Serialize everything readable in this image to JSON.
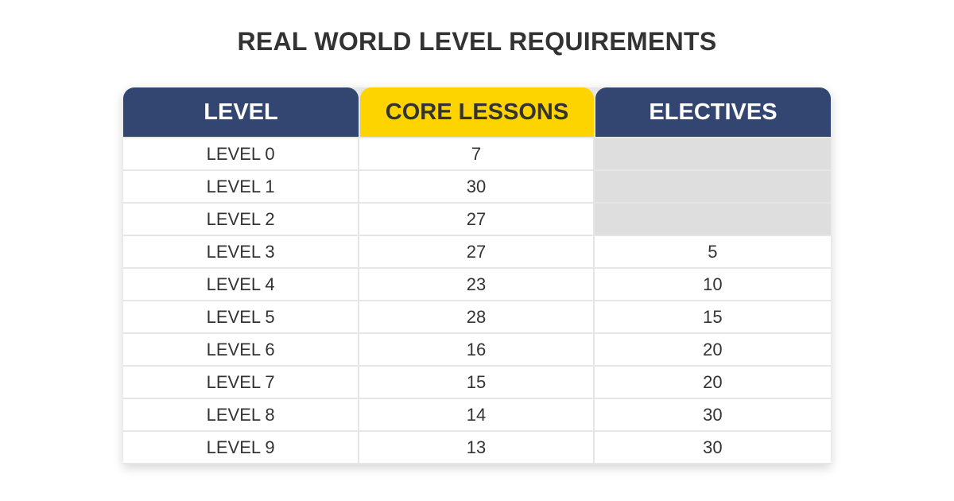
{
  "title": "REAL WORLD LEVEL REQUIREMENTS",
  "colors": {
    "header_navy": "#334571",
    "header_yellow": "#fdd400",
    "empty_cell_gray": "#dedede",
    "text": "#333333"
  },
  "table": {
    "headers": [
      "LEVEL",
      "CORE LESSONS",
      "ELECTIVES"
    ],
    "rows": [
      {
        "level": "LEVEL 0",
        "core": "7",
        "electives": ""
      },
      {
        "level": "LEVEL 1",
        "core": "30",
        "electives": ""
      },
      {
        "level": "LEVEL 2",
        "core": "27",
        "electives": ""
      },
      {
        "level": "LEVEL 3",
        "core": "27",
        "electives": "5"
      },
      {
        "level": "LEVEL 4",
        "core": "23",
        "electives": "10"
      },
      {
        "level": "LEVEL 5",
        "core": "28",
        "electives": "15"
      },
      {
        "level": "LEVEL 6",
        "core": "16",
        "electives": "20"
      },
      {
        "level": "LEVEL 7",
        "core": "15",
        "electives": "20"
      },
      {
        "level": "LEVEL 8",
        "core": "14",
        "electives": "30"
      },
      {
        "level": "LEVEL 9",
        "core": "13",
        "electives": "30"
      }
    ]
  }
}
